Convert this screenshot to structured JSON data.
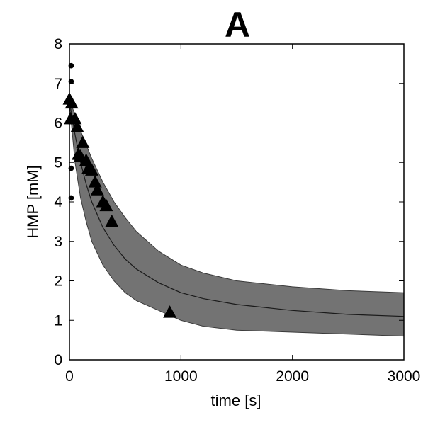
{
  "chart_data": {
    "type": "line",
    "title": "A",
    "xlabel": "time [s]",
    "ylabel": "HMP [mM]",
    "xlim": [
      0,
      3000
    ],
    "ylim": [
      0,
      8
    ],
    "xticks": [
      0,
      1000,
      2000,
      3000
    ],
    "yticks": [
      0,
      1,
      2,
      3,
      4,
      5,
      6,
      7,
      8
    ],
    "grid": false,
    "legend": "none",
    "colors": {
      "band": "#737373",
      "line": "#1a1a1a",
      "marker": "#000000"
    },
    "band": {
      "x": [
        0,
        50,
        100,
        150,
        200,
        300,
        400,
        500,
        600,
        800,
        1000,
        1200,
        1500,
        2000,
        2500,
        3000
      ],
      "upper": [
        6.6,
        6.2,
        5.8,
        5.45,
        5.1,
        4.5,
        4.0,
        3.6,
        3.25,
        2.75,
        2.4,
        2.2,
        2.0,
        1.85,
        1.75,
        1.7
      ],
      "lower": [
        6.5,
        5.0,
        4.1,
        3.5,
        3.0,
        2.4,
        2.0,
        1.7,
        1.5,
        1.25,
        1.0,
        0.85,
        0.75,
        0.7,
        0.65,
        0.6
      ]
    },
    "series": [
      {
        "type": "line",
        "x": [
          0,
          50,
          100,
          150,
          200,
          300,
          400,
          500,
          600,
          800,
          1000,
          1200,
          1500,
          2000,
          2500,
          3000
        ],
        "y": [
          6.55,
          5.7,
          5.0,
          4.45,
          4.0,
          3.35,
          2.9,
          2.55,
          2.3,
          1.95,
          1.7,
          1.55,
          1.4,
          1.25,
          1.15,
          1.1
        ]
      },
      {
        "type": "scatter",
        "marker": "triangle",
        "x": [
          0,
          10,
          20,
          50,
          70,
          80,
          100,
          120,
          150,
          170,
          200,
          230,
          250,
          300,
          330,
          380,
          900
        ],
        "y": [
          6.6,
          6.1,
          6.5,
          6.1,
          5.9,
          5.2,
          5.15,
          5.5,
          5.05,
          4.85,
          4.8,
          4.5,
          4.3,
          4.0,
          3.9,
          3.5,
          1.2
        ]
      },
      {
        "type": "scatter",
        "marker": "dot",
        "x": [
          15,
          15,
          15,
          15
        ],
        "y": [
          7.45,
          7.05,
          4.85,
          4.1
        ]
      }
    ]
  }
}
